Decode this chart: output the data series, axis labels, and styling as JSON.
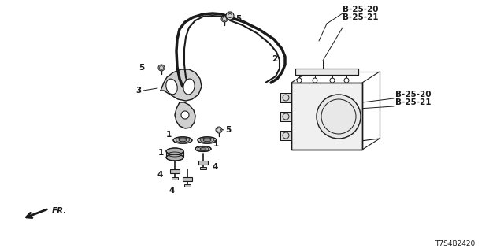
{
  "bg_color": "#ffffff",
  "line_color": "#1a1a1a",
  "figsize": [
    6.4,
    3.2
  ],
  "dpi": 100,
  "labels": {
    "top_ref1": "B-25-20",
    "top_ref2": "B-25-21",
    "right_ref1": "B-25-20",
    "right_ref2": "B-25-21",
    "part2": "2",
    "part3": "3",
    "part1a": "1",
    "part1b": "1",
    "part1c": "1",
    "part4a": "4",
    "part4b": "4",
    "part4c": "4",
    "part5a": "5",
    "part5b": "5",
    "part5c": "5",
    "fr_label": "FR.",
    "diagram_code": "T7S4B2420"
  }
}
